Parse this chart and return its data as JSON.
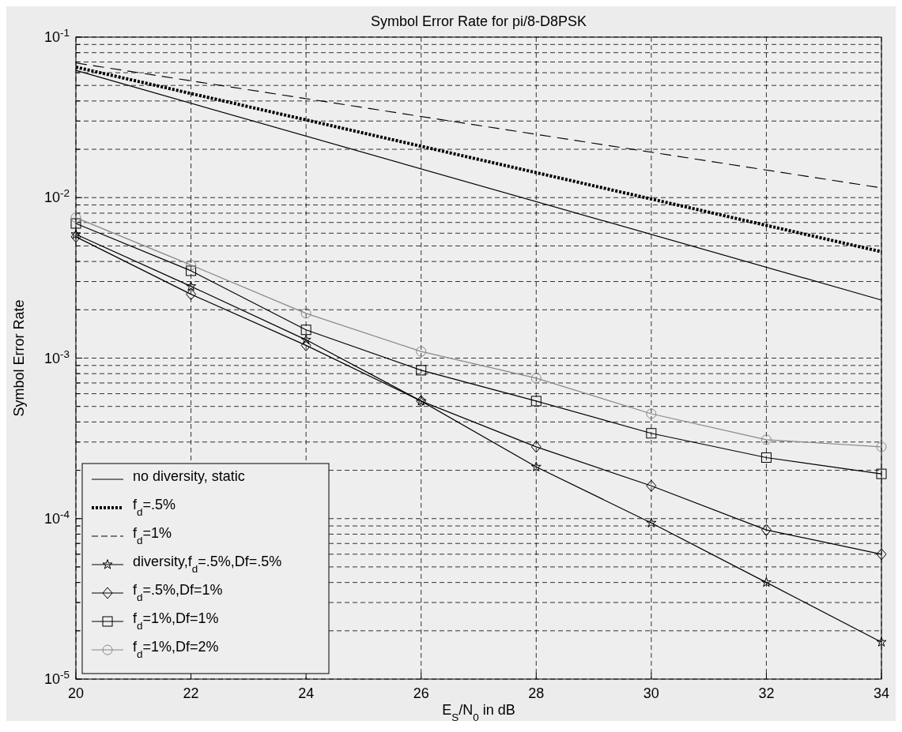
{
  "chart_data": {
    "type": "line",
    "title": "Symbol Error Rate for pi/8-D8PSK",
    "xlabel": "E$_{S}$/N$_{0}$ in dB",
    "ylabel": "Symbol Error Rate",
    "log": "y",
    "grid": true,
    "legend": "bottom left",
    "xlim": [
      20,
      34
    ],
    "xticks": [
      20,
      22,
      24,
      26,
      28,
      30,
      32,
      34
    ],
    "ylim": [
      1e-05,
      0.1
    ],
    "yticks": [
      {
        "value": 1e-05,
        "label": "10$^{-5}$"
      },
      {
        "value": 2e-05,
        "label": null
      },
      {
        "value": 3e-05,
        "label": null
      },
      {
        "value": 4e-05,
        "label": null
      },
      {
        "value": 5e-05,
        "label": null
      },
      {
        "value": 6e-05,
        "label": null
      },
      {
        "value": 7e-05,
        "label": null
      },
      {
        "value": 8e-05,
        "label": null
      },
      {
        "value": 9e-05,
        "label": null
      },
      {
        "value": 0.0001,
        "label": "10$^{-4}$"
      },
      {
        "value": 0.0002,
        "label": null
      },
      {
        "value": 0.0003,
        "label": null
      },
      {
        "value": 0.0004,
        "label": null
      },
      {
        "value": 0.0005,
        "label": null
      },
      {
        "value": 0.0006,
        "label": null
      },
      {
        "value": 0.0007,
        "label": null
      },
      {
        "value": 0.0008,
        "label": null
      },
      {
        "value": 0.0009,
        "label": null
      },
      {
        "value": 0.001,
        "label": "10$^{-3}$"
      },
      {
        "value": 0.002,
        "label": null
      },
      {
        "value": 0.003,
        "label": null
      },
      {
        "value": 0.004,
        "label": null
      },
      {
        "value": 0.005,
        "label": null
      },
      {
        "value": 0.006,
        "label": null
      },
      {
        "value": 0.007,
        "label": null
      },
      {
        "value": 0.008,
        "label": null
      },
      {
        "value": 0.009,
        "label": null
      },
      {
        "value": 0.01,
        "label": "10$^{-2}$"
      },
      {
        "value": 0.02,
        "label": null
      },
      {
        "value": 0.03,
        "label": null
      },
      {
        "value": 0.04,
        "label": null
      },
      {
        "value": 0.05,
        "label": null
      },
      {
        "value": 0.06,
        "label": null
      },
      {
        "value": 0.07,
        "label": null
      },
      {
        "value": 0.08,
        "label": null
      },
      {
        "value": 0.09,
        "label": null
      },
      {
        "value": 0.1,
        "label": "10$^{-1}$"
      }
    ],
    "series": [
      {
        "name": "no diversity, static",
        "color": "#000000",
        "marker": "none",
        "line_style": "solid",
        "x": [
          20,
          34
        ],
        "values": [
          0.062,
          0.0023
        ]
      },
      {
        "name": "f$_{d}$=.5%",
        "color": "#000000",
        "marker": "none",
        "line_style": "dotted",
        "x": [
          20,
          34
        ],
        "values": [
          0.065,
          0.0046
        ]
      },
      {
        "name": "f$_{d}$=1%",
        "color": "#000000",
        "marker": "none",
        "line_style": "dashed",
        "x": [
          20,
          34
        ],
        "values": [
          0.069,
          0.0115
        ]
      },
      {
        "name": "diversity,f$_{d}$=.5%,Df=.5%",
        "color": "#000000",
        "marker": "star",
        "line_style": "solid",
        "x": [
          20,
          22,
          24,
          26,
          28,
          30,
          32,
          34
        ],
        "values": [
          0.0059,
          0.0028,
          0.0013,
          0.00054,
          0.00021,
          9.4e-05,
          4e-05,
          1.7e-05
        ]
      },
      {
        "name": "f$_{d}$=.5%,Df=1%",
        "color": "#000000",
        "marker": "diamond",
        "line_style": "solid",
        "x": [
          20,
          22,
          24,
          26,
          28,
          30,
          32,
          34
        ],
        "values": [
          0.0057,
          0.0025,
          0.0012,
          0.00054,
          0.00028,
          0.00016,
          8.5e-05,
          6e-05
        ]
      },
      {
        "name": "f$_{d}$=1%,Df=1%",
        "color": "#000000",
        "marker": "square",
        "line_style": "solid",
        "x": [
          20,
          22,
          24,
          26,
          28,
          30,
          32,
          34
        ],
        "values": [
          0.0069,
          0.0035,
          0.0015,
          0.00084,
          0.00054,
          0.00034,
          0.00024,
          0.00019
        ]
      },
      {
        "name": "f$_{d}$=1%,Df=2%",
        "color": "#888888",
        "marker": "circle",
        "line_style": "solid",
        "x": [
          20,
          22,
          24,
          26,
          28,
          30,
          32,
          34
        ],
        "values": [
          0.0075,
          0.0038,
          0.0019,
          0.0011,
          0.00075,
          0.00045,
          0.00031,
          0.00028
        ]
      }
    ]
  }
}
